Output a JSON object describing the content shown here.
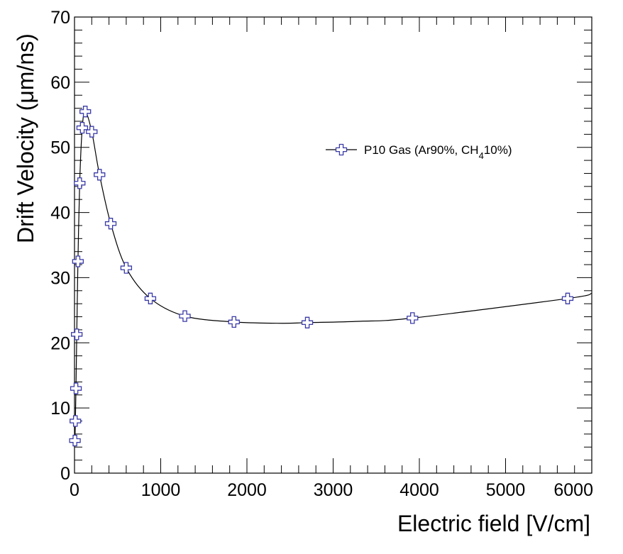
{
  "chart_data": {
    "type": "line",
    "title": "",
    "xlabel": "Electric field [V/cm]",
    "ylabel": "Drift Velocity (μm/ns)",
    "xlim": [
      0,
      6000
    ],
    "ylim": [
      0,
      70
    ],
    "x_major_ticks": [
      0,
      1000,
      2000,
      3000,
      4000,
      5000,
      6000
    ],
    "y_major_ticks": [
      0,
      10,
      20,
      30,
      40,
      50,
      60,
      70
    ],
    "x_tick_labels": [
      "0",
      "1000",
      "2000",
      "3000",
      "4000",
      "5000",
      "6000"
    ],
    "y_tick_labels": [
      "0",
      "10",
      "20",
      "30",
      "40",
      "50",
      "60",
      "70"
    ],
    "grid": false,
    "legend_position": "top-right",
    "marker": "open-cross",
    "marker_color": "#3a3aa8",
    "line_color": "#000000",
    "series": [
      {
        "name": "P10 Gas (Ar90%, CH4 10%)",
        "legend_parts": {
          "main": "P10 Gas (Ar90%, CH",
          "sub": "4",
          "tail": "10%)"
        },
        "points": [
          [
            5,
            5.0
          ],
          [
            10,
            8.0
          ],
          [
            17,
            13.0
          ],
          [
            26,
            21.3
          ],
          [
            40,
            32.5
          ],
          [
            60,
            44.5
          ],
          [
            90,
            53.0
          ],
          [
            125,
            55.5
          ],
          [
            200,
            52.4
          ],
          [
            290,
            45.8
          ],
          [
            420,
            38.3
          ],
          [
            600,
            31.5
          ],
          [
            880,
            26.8
          ],
          [
            1280,
            24.1
          ],
          [
            1850,
            23.2
          ],
          [
            2700,
            23.1
          ],
          [
            3920,
            23.8
          ],
          [
            5720,
            26.8
          ]
        ],
        "curve": [
          [
            5,
            5.0
          ],
          [
            10,
            8.0
          ],
          [
            17,
            13.0
          ],
          [
            26,
            21.3
          ],
          [
            40,
            32.5
          ],
          [
            60,
            44.5
          ],
          [
            90,
            53.0
          ],
          [
            125,
            55.5
          ],
          [
            200,
            52.4
          ],
          [
            290,
            45.8
          ],
          [
            420,
            38.3
          ],
          [
            600,
            31.5
          ],
          [
            880,
            26.8
          ],
          [
            1280,
            24.1
          ],
          [
            1850,
            23.2
          ],
          [
            2400,
            23.0
          ],
          [
            2700,
            23.1
          ],
          [
            3300,
            23.3
          ],
          [
            3920,
            23.8
          ],
          [
            5720,
            26.8
          ],
          [
            6000,
            27.6
          ]
        ]
      }
    ]
  }
}
